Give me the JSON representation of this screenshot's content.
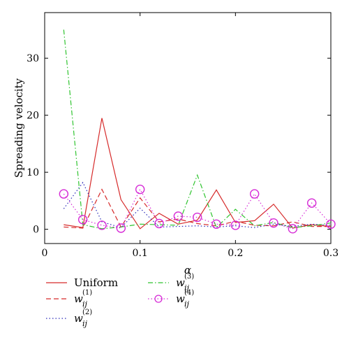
{
  "chart_data": {
    "type": "line",
    "title": "",
    "xlabel": "α",
    "ylabel": "Spreading velocity",
    "xlim": [
      0,
      0.3
    ],
    "ylim": [
      -2.5,
      38
    ],
    "xticks": [
      0,
      0.1,
      0.2,
      0.3
    ],
    "xtick_labels": [
      "0",
      "0.1",
      "0.2",
      "0.3"
    ],
    "yticks": [
      0,
      10,
      20,
      30
    ],
    "ytick_labels": [
      "0",
      "10",
      "20",
      "30"
    ],
    "grid": false,
    "legend_placement": "bottom-left (below plot)",
    "x": [
      0.02,
      0.04,
      0.06,
      0.08,
      0.1,
      0.12,
      0.14,
      0.16,
      0.18,
      0.2,
      0.22,
      0.24,
      0.26,
      0.28,
      0.3
    ],
    "series": [
      {
        "name": "Uniform",
        "legend_main": "Uniform",
        "legend_sub": "",
        "legend_sup": "",
        "color": "#d62a2a",
        "dash": "solid",
        "marker": "none",
        "values": [
          0.8,
          0.3,
          19.5,
          5.2,
          0.1,
          2.8,
          0.9,
          1.6,
          6.9,
          1.2,
          1.5,
          4.4,
          0.2,
          0.8,
          0.5
        ]
      },
      {
        "name": "w_ij^(1)",
        "legend_main": "w",
        "legend_sub": "ij",
        "legend_sup": "(1)",
        "color": "#d62a2a",
        "dash": "dashed",
        "marker": "none",
        "values": [
          0.4,
          0.2,
          7.0,
          0.4,
          5.5,
          1.3,
          1.8,
          1.0,
          0.6,
          1.4,
          0.7,
          0.6,
          1.3,
          0.5,
          0.5
        ]
      },
      {
        "name": "w_ij^(2)",
        "legend_main": "w",
        "legend_sub": "ij",
        "legend_sup": "(2)",
        "color": "#2a2ab8",
        "dash": "dotted",
        "marker": "none",
        "values": [
          3.6,
          8.2,
          1.3,
          0.3,
          3.7,
          0.4,
          0.5,
          0.6,
          0.4,
          0.6,
          0.3,
          0.9,
          0.5,
          0.9,
          0.7
        ]
      },
      {
        "name": "w_ij^(3)",
        "legend_main": "w",
        "legend_sub": "ij",
        "legend_sup": "(3)",
        "color": "#2fc42f",
        "dash": "dashdot",
        "marker": "none",
        "values": [
          35.0,
          0.8,
          0.1,
          0.4,
          0.9,
          0.8,
          0.7,
          9.5,
          0.3,
          3.5,
          0.6,
          1.2,
          0.3,
          0.6,
          1.1
        ]
      },
      {
        "name": "w_ij^(4)",
        "legend_main": "w",
        "legend_sub": "ij",
        "legend_sup": "(4)",
        "color": "#d62ad6",
        "dash": "dotted",
        "marker": "circle",
        "values": [
          6.2,
          1.7,
          0.7,
          0.2,
          7.0,
          1.0,
          2.3,
          2.1,
          0.9,
          0.7,
          6.2,
          1.1,
          0.1,
          4.6,
          0.9
        ]
      }
    ]
  }
}
